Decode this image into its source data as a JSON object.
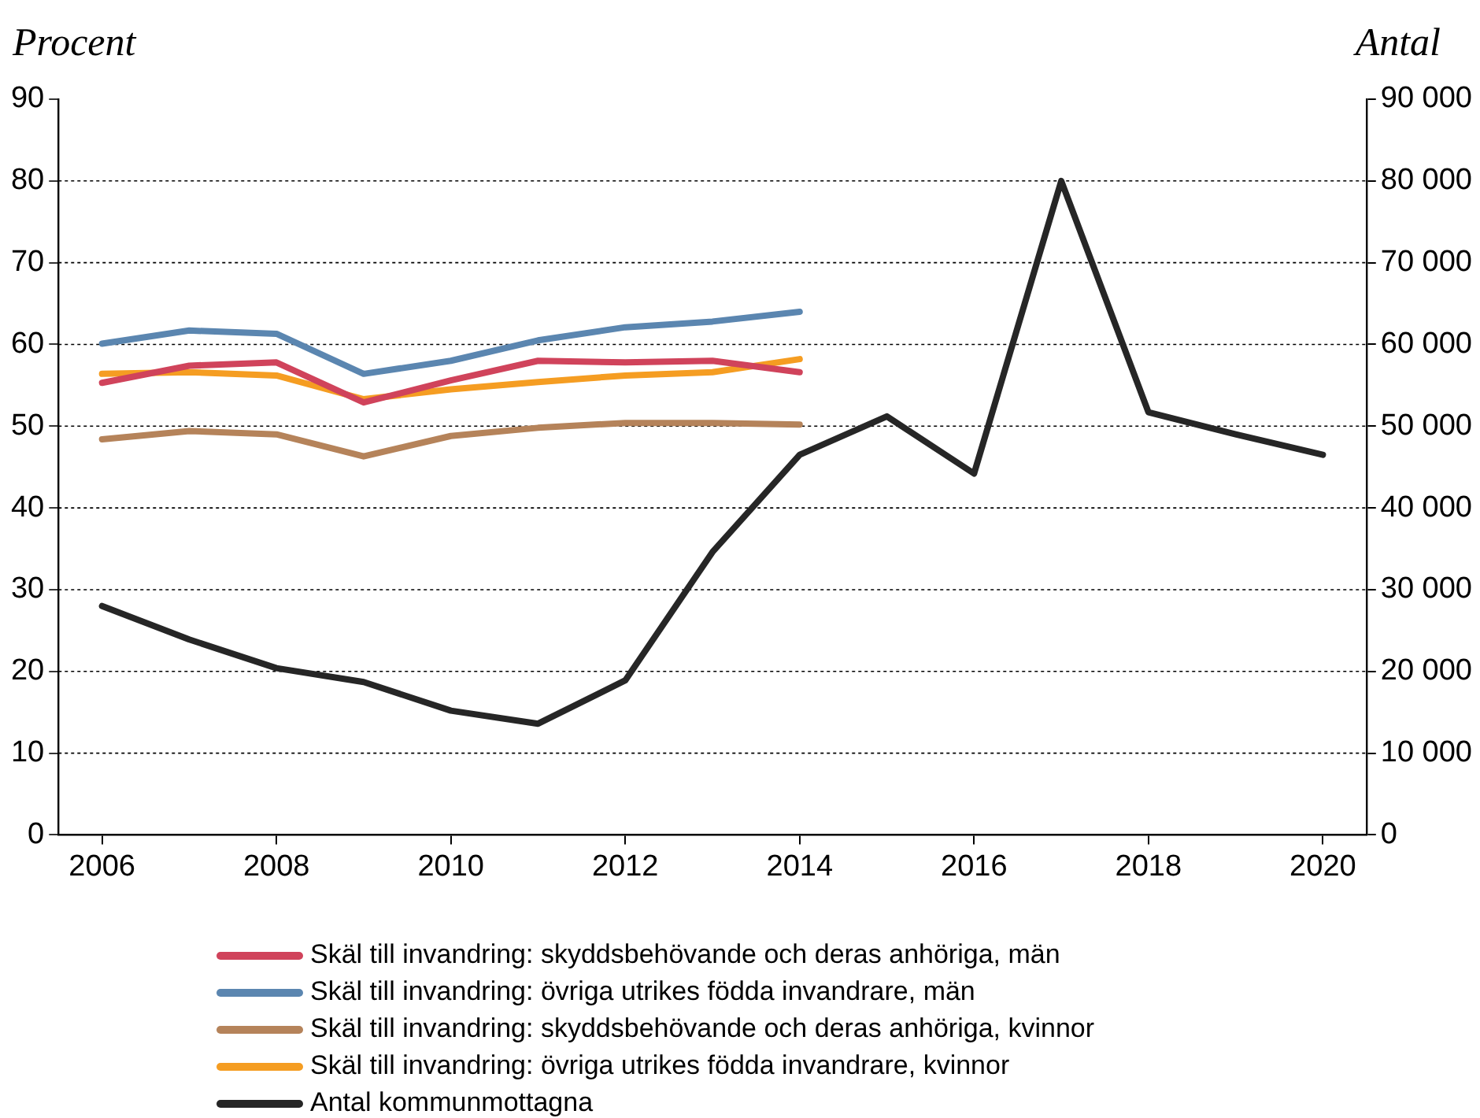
{
  "chart_data": {
    "type": "line",
    "ylabel": "Procent",
    "y2label": "Antal",
    "x": [
      2006,
      2007,
      2008,
      2009,
      2010,
      2011,
      2012,
      2013,
      2014,
      2015,
      2016,
      2017,
      2018,
      2019,
      2020
    ],
    "xlim": [
      2005.5,
      2020.5
    ],
    "xticks": [
      2006,
      2008,
      2010,
      2012,
      2014,
      2016,
      2018,
      2020
    ],
    "ylim": [
      0,
      90
    ],
    "yticks": [
      0,
      10,
      20,
      30,
      40,
      50,
      60,
      70,
      80,
      90
    ],
    "y2lim": [
      0,
      90000
    ],
    "y2ticks": [
      0,
      {
        "value": 10000,
        "label": "10 000"
      },
      {
        "value": 20000,
        "label": "20 000"
      },
      {
        "value": 30000,
        "label": "30 000"
      },
      {
        "value": 40000,
        "label": "40 000"
      },
      {
        "value": 50000,
        "label": "50 000"
      },
      {
        "value": 60000,
        "label": "60 000"
      },
      {
        "value": 70000,
        "label": "70 000"
      },
      {
        "value": 80000,
        "label": "80 000"
      },
      {
        "value": 90000,
        "label": "90 000"
      }
    ],
    "grid": "y",
    "legend": "bottom",
    "marker": "none",
    "line_style": "solid",
    "series": [
      {
        "name": "Skäl till invandring: skyddsbehövande och deras anhöriga, män",
        "color": "#d0435b",
        "values": [
          55.3,
          57.4,
          57.8,
          52.9,
          55.6,
          58.0,
          57.8,
          58.0,
          56.6,
          null,
          null,
          null,
          null,
          null,
          null
        ]
      },
      {
        "name": "Skäl till invandring: övriga utrikes födda invandrare, män",
        "color": "#5b86b0",
        "values": [
          60.1,
          61.7,
          61.3,
          56.4,
          58.0,
          60.5,
          62.1,
          62.8,
          64.0,
          null,
          null,
          null,
          null,
          null,
          null
        ]
      },
      {
        "name": "Skäl till invandring: skyddsbehövande och deras anhöriga, kvinnor",
        "color": "#b5835a",
        "values": [
          48.4,
          49.4,
          49.0,
          46.3,
          48.8,
          49.8,
          50.4,
          50.4,
          50.2,
          null,
          null,
          null,
          null,
          null,
          null
        ]
      },
      {
        "name": "Skäl till invandring: övriga utrikes födda invandrare, kvinnor",
        "color": "#f59d22",
        "values": [
          56.4,
          56.6,
          56.2,
          53.3,
          54.5,
          55.4,
          56.2,
          56.6,
          58.2,
          null,
          null,
          null,
          null,
          null,
          null
        ]
      },
      {
        "name": "Antal kommunmottagna",
        "color": "#262626",
        "axis": "y2",
        "values": [
          28000,
          23900,
          20400,
          18700,
          15200,
          13600,
          18900,
          34600,
          46500,
          51200,
          44200,
          80000,
          51700,
          49000,
          46500
        ]
      }
    ]
  }
}
